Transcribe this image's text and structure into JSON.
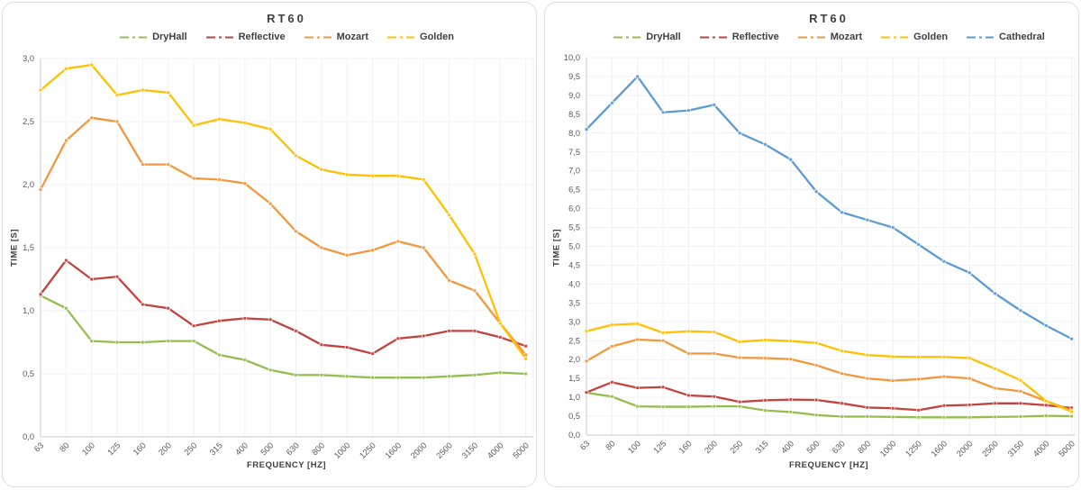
{
  "styles": {
    "panel_border_color": "#dedede",
    "title_color": "#3f3f3f",
    "axis_text_color": "#595959",
    "grid_color": "#f1f1f1",
    "axis_line_color": "#c9c9c9"
  },
  "chart_data": [
    {
      "type": "line",
      "title": "RT60",
      "xlabel": "FREQUENCY [HZ]",
      "ylabel": "TIME [S]",
      "ylim": [
        0,
        3
      ],
      "y_step": 0.5,
      "grid": true,
      "legend_position": "top",
      "x_tick_rotation": -45,
      "categories": [
        "63",
        "80",
        "100",
        "125",
        "160",
        "200",
        "250",
        "315",
        "400",
        "500",
        "630",
        "800",
        "1000",
        "1250",
        "1600",
        "2000",
        "2500",
        "3150",
        "4000",
        "5000"
      ],
      "y_tick_labels": [
        "0,0",
        "0,5",
        "1,0",
        "1,5",
        "2,0",
        "2,5",
        "3,0"
      ],
      "series": [
        {
          "name": "DryHall",
          "color": "#94bd4f",
          "values": [
            1.12,
            1.02,
            0.76,
            0.75,
            0.75,
            0.76,
            0.76,
            0.65,
            0.61,
            0.53,
            0.49,
            0.49,
            0.48,
            0.47,
            0.47,
            0.47,
            0.48,
            0.49,
            0.51,
            0.5
          ]
        },
        {
          "name": "Reflective",
          "color": "#c2423e",
          "values": [
            1.13,
            1.4,
            1.25,
            1.27,
            1.05,
            1.02,
            0.88,
            0.92,
            0.94,
            0.93,
            0.84,
            0.73,
            0.71,
            0.66,
            0.78,
            0.8,
            0.84,
            0.84,
            0.79,
            0.72
          ]
        },
        {
          "name": "Mozart",
          "color": "#f2973b",
          "values": [
            1.96,
            2.35,
            2.53,
            2.5,
            2.16,
            2.16,
            2.05,
            2.04,
            2.01,
            1.85,
            1.63,
            1.5,
            1.44,
            1.48,
            1.55,
            1.5,
            1.24,
            1.16,
            0.9,
            0.65
          ]
        },
        {
          "name": "Golden",
          "color": "#ffc000",
          "values": [
            2.75,
            2.92,
            2.95,
            2.71,
            2.75,
            2.73,
            2.47,
            2.52,
            2.49,
            2.44,
            2.23,
            2.12,
            2.08,
            2.07,
            2.07,
            2.04,
            1.76,
            1.45,
            0.9,
            0.62
          ]
        }
      ]
    },
    {
      "type": "line",
      "title": "RT60",
      "xlabel": "FREQUENCY [HZ]",
      "ylabel": "TIME [S]",
      "ylim": [
        0,
        10
      ],
      "y_step": 0.5,
      "grid": true,
      "legend_position": "top",
      "x_tick_rotation": -45,
      "categories": [
        "63",
        "80",
        "100",
        "125",
        "160",
        "200",
        "250",
        "315",
        "400",
        "500",
        "630",
        "800",
        "1000",
        "1250",
        "1600",
        "2000",
        "2500",
        "3150",
        "4000",
        "5000"
      ],
      "y_tick_labels": [
        "0,0",
        "0,5",
        "1,0",
        "1,5",
        "2,0",
        "2,5",
        "3,0",
        "3,5",
        "4,0",
        "4,5",
        "5,0",
        "5,5",
        "6,0",
        "6,5",
        "7,0",
        "7,5",
        "8,0",
        "8,5",
        "9,0",
        "9,5",
        "10,0"
      ],
      "series": [
        {
          "name": "DryHall",
          "color": "#94bd4f",
          "values": [
            1.12,
            1.02,
            0.76,
            0.75,
            0.75,
            0.76,
            0.76,
            0.65,
            0.61,
            0.53,
            0.49,
            0.49,
            0.48,
            0.47,
            0.47,
            0.47,
            0.48,
            0.49,
            0.51,
            0.5
          ]
        },
        {
          "name": "Reflective",
          "color": "#c2423e",
          "values": [
            1.13,
            1.4,
            1.25,
            1.27,
            1.05,
            1.02,
            0.88,
            0.92,
            0.94,
            0.93,
            0.84,
            0.73,
            0.71,
            0.66,
            0.78,
            0.8,
            0.84,
            0.84,
            0.79,
            0.72
          ]
        },
        {
          "name": "Mozart",
          "color": "#f2973b",
          "values": [
            1.96,
            2.35,
            2.53,
            2.5,
            2.16,
            2.16,
            2.05,
            2.04,
            2.01,
            1.85,
            1.63,
            1.5,
            1.44,
            1.48,
            1.55,
            1.5,
            1.24,
            1.16,
            0.9,
            0.65
          ]
        },
        {
          "name": "Golden",
          "color": "#ffc000",
          "values": [
            2.75,
            2.92,
            2.95,
            2.71,
            2.75,
            2.73,
            2.47,
            2.52,
            2.49,
            2.44,
            2.23,
            2.12,
            2.08,
            2.07,
            2.07,
            2.04,
            1.76,
            1.45,
            0.9,
            0.62
          ]
        },
        {
          "name": "Cathedral",
          "color": "#5b9bd5",
          "values": [
            8.1,
            8.8,
            9.5,
            8.55,
            8.6,
            8.75,
            8.0,
            7.7,
            7.3,
            6.45,
            5.9,
            5.7,
            5.5,
            5.05,
            4.6,
            4.3,
            3.75,
            3.3,
            2.9,
            2.55
          ]
        }
      ]
    }
  ]
}
